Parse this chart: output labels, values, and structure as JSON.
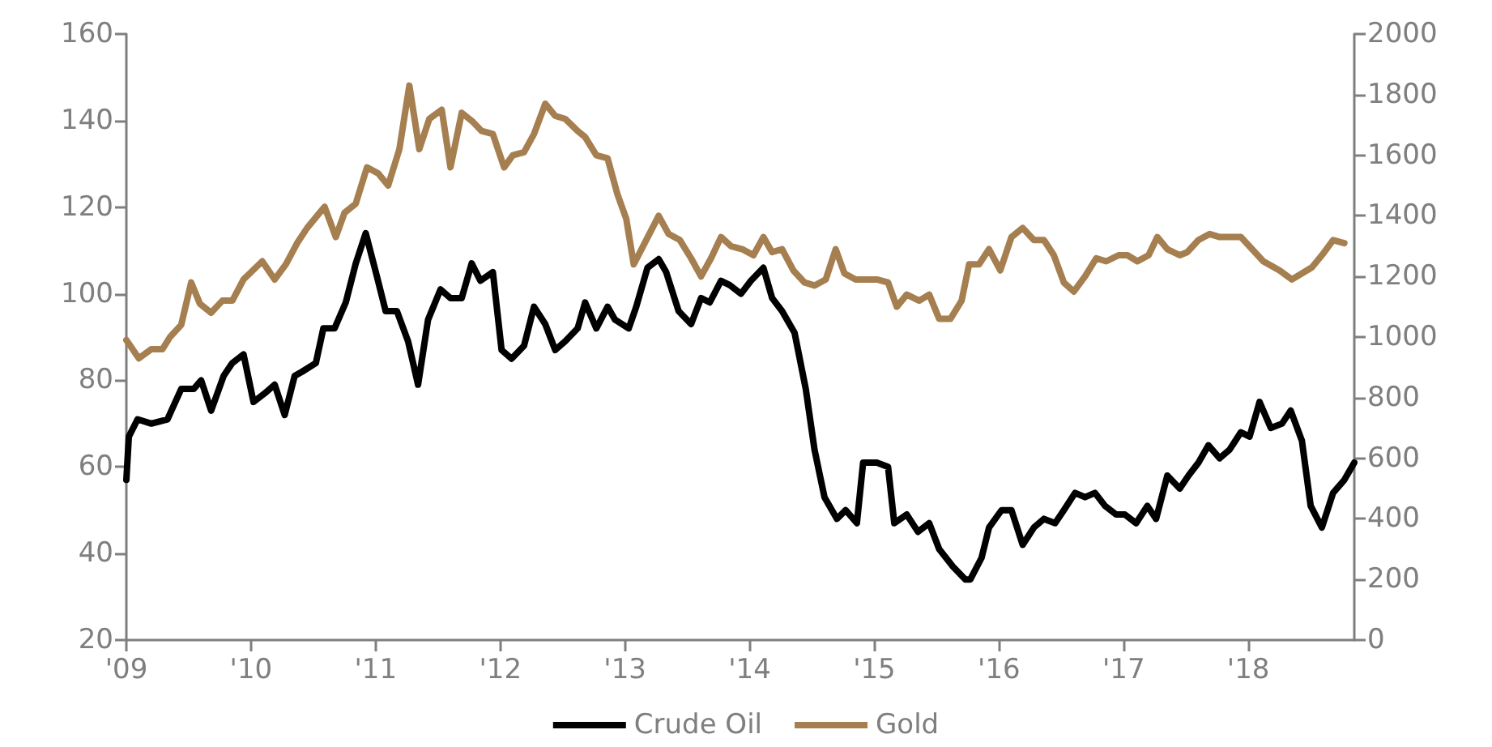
{
  "chart_data": {
    "type": "line",
    "legend": "bottom",
    "grid": false,
    "marker": "none",
    "line_style": "solid",
    "xlim": [
      2009,
      2018.85
    ],
    "xticks": [
      {
        "value": 2009,
        "label": "'09"
      },
      {
        "value": 2010,
        "label": "'10"
      },
      {
        "value": 2011,
        "label": "'11"
      },
      {
        "value": 2012,
        "label": "'12"
      },
      {
        "value": 2013,
        "label": "'13"
      },
      {
        "value": 2014,
        "label": "'14"
      },
      {
        "value": 2015,
        "label": "'15"
      },
      {
        "value": 2016,
        "label": "'16"
      },
      {
        "value": 2017,
        "label": "'17"
      },
      {
        "value": 2018,
        "label": "'18"
      }
    ],
    "ylim": [
      20,
      160
    ],
    "yticks": [
      20,
      40,
      60,
      80,
      100,
      120,
      140,
      160
    ],
    "y2lim": [
      0,
      2000
    ],
    "y2ticks": [
      0,
      200,
      400,
      600,
      800,
      1000,
      1200,
      1400,
      1600,
      1800,
      2000
    ],
    "series": [
      {
        "name": "Crude Oil",
        "color": "#000000",
        "axis": "y",
        "x": [
          2009.0,
          2009.02,
          2009.09,
          2009.2,
          2009.33,
          2009.44,
          2009.54,
          2009.6,
          2009.68,
          2009.78,
          2009.85,
          2009.94,
          2010.02,
          2010.11,
          2010.19,
          2010.27,
          2010.35,
          2010.41,
          2010.52,
          2010.58,
          2010.67,
          2010.76,
          2010.84,
          2010.92,
          2011.01,
          2011.08,
          2011.17,
          2011.26,
          2011.34,
          2011.42,
          2011.52,
          2011.6,
          2011.69,
          2011.77,
          2011.84,
          2011.94,
          2012.01,
          2012.09,
          2012.19,
          2012.27,
          2012.36,
          2012.44,
          2012.52,
          2012.62,
          2012.68,
          2012.77,
          2012.86,
          2012.92,
          2013.03,
          2013.09,
          2013.18,
          2013.27,
          2013.33,
          2013.43,
          2013.53,
          2013.61,
          2013.68,
          2013.77,
          2013.84,
          2013.93,
          2014.01,
          2014.11,
          2014.18,
          2014.26,
          2014.36,
          2014.45,
          2014.52,
          2014.6,
          2014.7,
          2014.77,
          2014.86,
          2014.91,
          2015.02,
          2015.11,
          2015.16,
          2015.26,
          2015.35,
          2015.44,
          2015.52,
          2015.63,
          2015.73,
          2015.77,
          2015.86,
          2015.92,
          2016.02,
          2016.1,
          2016.19,
          2016.28,
          2016.36,
          2016.45,
          2016.52,
          2016.61,
          2016.69,
          2016.77,
          2016.85,
          2016.94,
          2017.01,
          2017.1,
          2017.19,
          2017.26,
          2017.35,
          2017.45,
          2017.52,
          2017.6,
          2017.68,
          2017.77,
          2017.85,
          2017.94,
          2018.01,
          2018.09,
          2018.18,
          2018.27,
          2018.34,
          2018.43,
          2018.5,
          2018.59,
          2018.68,
          2018.77,
          2018.85
        ],
        "values": [
          57,
          67,
          71,
          70,
          71,
          78,
          78,
          80,
          73,
          81,
          84,
          86,
          75,
          77,
          79,
          72,
          81,
          82,
          84,
          92,
          92,
          98,
          107,
          114,
          104,
          96,
          96,
          89,
          79,
          94,
          101,
          99,
          99,
          107,
          103,
          105,
          87,
          85,
          88,
          97,
          93,
          87,
          89,
          92,
          98,
          92,
          97,
          94,
          92,
          97,
          106,
          108,
          105,
          96,
          93,
          99,
          98,
          103,
          102,
          100,
          103,
          106,
          99,
          96,
          91,
          78,
          64,
          53,
          48,
          50,
          47,
          61,
          61,
          60,
          47,
          49,
          45,
          47,
          41,
          37,
          34,
          34,
          39,
          46,
          50,
          50,
          42,
          46,
          48,
          47,
          50,
          54,
          53,
          54,
          51,
          49,
          49,
          47,
          51,
          48,
          58,
          55,
          58,
          61,
          65,
          62,
          64,
          68,
          67,
          75,
          69,
          70,
          73,
          66,
          51,
          46,
          54,
          57,
          61
        ]
      },
      {
        "name": "Gold",
        "color": "#a67f50",
        "axis": "y2",
        "x": [
          2009.0,
          2009.1,
          2009.2,
          2009.29,
          2009.35,
          2009.44,
          2009.52,
          2009.59,
          2009.68,
          2009.77,
          2009.85,
          2009.94,
          2010.09,
          2010.19,
          2010.28,
          2010.37,
          2010.45,
          2010.59,
          2010.68,
          2010.75,
          2010.84,
          2010.93,
          2011.02,
          2011.1,
          2011.19,
          2011.27,
          2011.35,
          2011.43,
          2011.53,
          2011.6,
          2011.69,
          2011.78,
          2011.85,
          2011.94,
          2012.03,
          2012.1,
          2012.19,
          2012.27,
          2012.36,
          2012.44,
          2012.52,
          2012.62,
          2012.68,
          2012.77,
          2012.86,
          2012.94,
          2013.01,
          2013.07,
          2013.17,
          2013.27,
          2013.35,
          2013.44,
          2013.53,
          2013.61,
          2013.69,
          2013.77,
          2013.85,
          2013.94,
          2014.03,
          2014.11,
          2014.18,
          2014.26,
          2014.35,
          2014.44,
          2014.52,
          2014.61,
          2014.69,
          2014.76,
          2014.85,
          2014.94,
          2015.02,
          2015.11,
          2015.18,
          2015.26,
          2015.36,
          2015.44,
          2015.52,
          2015.61,
          2015.7,
          2015.76,
          2015.84,
          2015.92,
          2016.01,
          2016.1,
          2016.19,
          2016.28,
          2016.36,
          2016.44,
          2016.52,
          2016.6,
          2016.69,
          2016.78,
          2016.86,
          2016.96,
          2017.03,
          2017.11,
          2017.2,
          2017.27,
          2017.35,
          2017.45,
          2017.51,
          2017.6,
          2017.69,
          2017.77,
          2017.86,
          2017.94,
          2018.03,
          2018.12,
          2018.25,
          2018.35,
          2018.51,
          2018.59,
          2018.68,
          2018.77
        ],
        "values": [
          990,
          930,
          960,
          960,
          1000,
          1040,
          1180,
          1110,
          1080,
          1120,
          1120,
          1190,
          1250,
          1190,
          1240,
          1310,
          1360,
          1430,
          1330,
          1410,
          1440,
          1560,
          1540,
          1500,
          1620,
          1830,
          1620,
          1720,
          1750,
          1560,
          1740,
          1710,
          1680,
          1670,
          1560,
          1600,
          1610,
          1670,
          1770,
          1730,
          1720,
          1680,
          1660,
          1600,
          1590,
          1470,
          1390,
          1240,
          1320,
          1400,
          1340,
          1320,
          1260,
          1200,
          1260,
          1330,
          1300,
          1290,
          1270,
          1330,
          1280,
          1290,
          1220,
          1180,
          1170,
          1190,
          1290,
          1210,
          1190,
          1190,
          1190,
          1180,
          1100,
          1140,
          1120,
          1140,
          1060,
          1060,
          1120,
          1240,
          1240,
          1290,
          1220,
          1330,
          1360,
          1320,
          1320,
          1270,
          1180,
          1150,
          1200,
          1260,
          1250,
          1270,
          1270,
          1250,
          1270,
          1330,
          1290,
          1270,
          1280,
          1320,
          1340,
          1330,
          1330,
          1330,
          1290,
          1250,
          1220,
          1190,
          1230,
          1270,
          1320,
          1310
        ]
      }
    ]
  }
}
